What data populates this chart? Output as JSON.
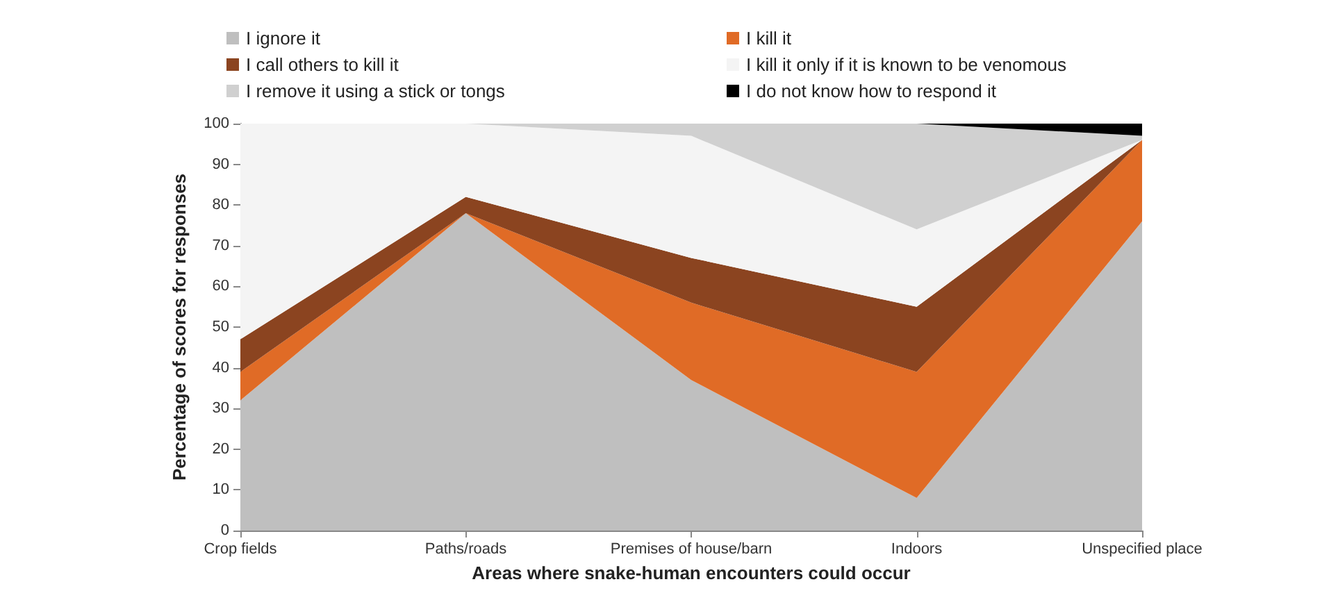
{
  "chart_data": {
    "type": "area",
    "stacked": true,
    "xlabel": "Areas where snake-human encounters could occur",
    "ylabel": "Percentage of scores for responses",
    "categories": [
      "Crop fields",
      "Paths/roads",
      "Premises of house/barn",
      "Indoors",
      "Unspecified place"
    ],
    "series": [
      {
        "name": "I ignore it",
        "color": "#bfbfbf",
        "values": [
          32,
          78,
          37,
          8,
          76
        ]
      },
      {
        "name": "I kill it",
        "color": "#e06b26",
        "values": [
          7,
          0,
          19,
          31,
          20
        ]
      },
      {
        "name": "I call others to kill it",
        "color": "#8b4420",
        "values": [
          8,
          4,
          11,
          16,
          0
        ]
      },
      {
        "name": "I kill it only if it is known to be venomous",
        "color": "#f4f4f4",
        "values": [
          53,
          18,
          30,
          19,
          0
        ]
      },
      {
        "name": "I remove it using a stick or tongs",
        "color": "#d0d0d0",
        "values": [
          0,
          0,
          3,
          26,
          1
        ]
      },
      {
        "name": "I do not know how to respond it",
        "color": "#000000",
        "values": [
          0,
          0,
          0,
          0,
          3
        ]
      }
    ],
    "ylim": [
      0,
      100
    ],
    "yticks": [
      0,
      10,
      20,
      30,
      40,
      50,
      60,
      70,
      80,
      90,
      100
    ],
    "grid": false,
    "legend": "top"
  }
}
